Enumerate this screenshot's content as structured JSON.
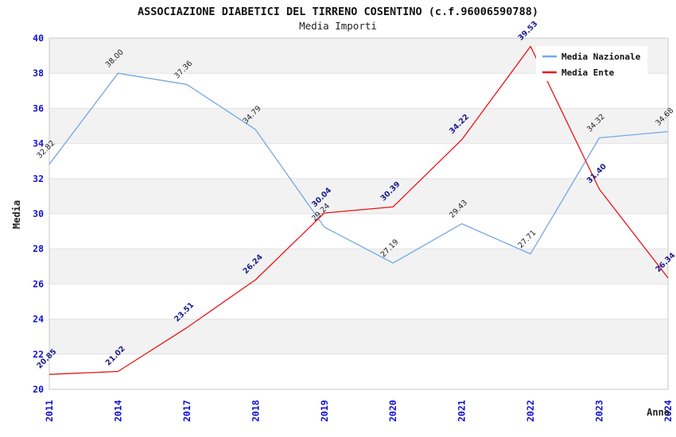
{
  "title": "ASSOCIAZIONE DIABETICI DEL TIRRENO COSENTINO (c.f.96006590788)",
  "subtitle": "Media Importi",
  "legend": {
    "items": [
      {
        "label": "Media Nazionale",
        "color": "#74a8e4"
      },
      {
        "label": "Media Ente",
        "color": "#ee1111"
      }
    ]
  },
  "chart_data": {
    "type": "line",
    "title": "ASSOCIAZIONE DIABETICI DEL TIRRENO COSENTINO (c.f.96006590788)",
    "subtitle": "Media Importi",
    "xlabel": "Anno",
    "ylabel": "Media",
    "categories": [
      "2011",
      "2014",
      "2017",
      "2018",
      "2019",
      "2020",
      "2021",
      "2022",
      "2023",
      "2024"
    ],
    "series": [
      {
        "name": "Media Nazionale",
        "color": "#74a8e4",
        "label_color": "#222222",
        "label_bold": false,
        "values": [
          32.82,
          38.0,
          37.36,
          34.79,
          29.24,
          27.19,
          29.43,
          27.71,
          34.32,
          34.68
        ]
      },
      {
        "name": "Media Ente",
        "color": "#ee1111",
        "label_color": "#1b1b8e",
        "label_bold": true,
        "values": [
          20.85,
          21.02,
          23.51,
          26.24,
          30.04,
          30.39,
          34.22,
          39.53,
          31.4,
          26.34
        ]
      }
    ],
    "ylim": [
      20,
      40
    ],
    "ytick_step": 2,
    "grid": "alternating-horizontal-bands",
    "band_color": "#f2f2f2",
    "gridline_color": "#e2e2e2",
    "border_color": "#c9c9c9",
    "tick_label_color": "#0f0fd6",
    "axis_label_color": "#222222",
    "legend_position": "top-right"
  }
}
